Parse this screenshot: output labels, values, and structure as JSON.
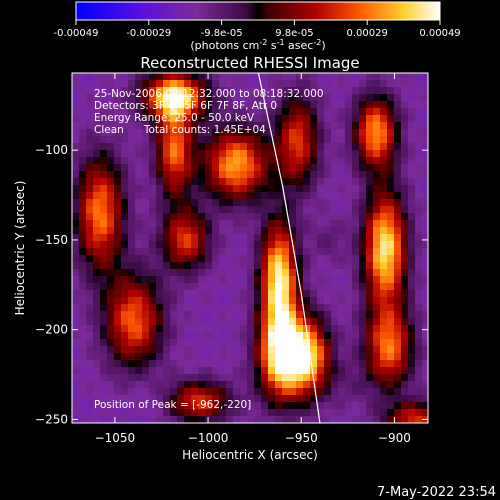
{
  "chart_data": {
    "type": "heatmap",
    "title": "Reconstructed RHESSI Image",
    "xlabel": "Heliocentric X (arcsec)",
    "ylabel": "Heliocentric Y (arcsec)",
    "xlim": [
      -1073,
      -882
    ],
    "ylim": [
      -252,
      -57
    ],
    "xticks": [
      -1050,
      -1000,
      -950,
      -900
    ],
    "yticks": [
      -100,
      -150,
      -200,
      -250
    ],
    "colorbar": {
      "ticks": [
        "-0.00049",
        "-0.00029",
        "-9.8e-05",
        "9.8e-05",
        "0.00029",
        "0.00049"
      ],
      "range": [
        -0.00049,
        0.00049
      ],
      "label_main": "(photons cm",
      "label_exp1": "-2",
      "label_mid": " s",
      "label_exp2": "-1",
      "label_end": " asec",
      "label_exp3": "-2",
      "label_close": ")"
    },
    "annotations": [
      "25-Nov-2006 08:12:32.000 to 08:18:32.000",
      "Detectors: 3F 4F 5F 6F 7F 8F, Att 0",
      "Energy Range: 25.0 - 50.0 keV",
      "Clean      Total counts: 1.45E+04"
    ],
    "peak_label": "Position of Peak = [-962,-220]",
    "peak": [
      -962,
      -220
    ],
    "limb": [
      [
        -973,
        -57
      ],
      [
        -960,
        -120
      ],
      [
        -950,
        -180
      ],
      [
        -940,
        -252
      ]
    ],
    "features": [
      {
        "x": -1058,
        "y": -135,
        "sx": 9,
        "sy": 22,
        "v": 0.0003
      },
      {
        "x": -1040,
        "y": -195,
        "sx": 11,
        "sy": 18,
        "v": 0.00027
      },
      {
        "x": -1018,
        "y": -100,
        "sx": 7,
        "sy": 18,
        "v": 0.00028
      },
      {
        "x": -1012,
        "y": -150,
        "sx": 9,
        "sy": 12,
        "v": 0.00022
      },
      {
        "x": -1018,
        "y": -70,
        "sx": 12,
        "sy": 9,
        "v": 0.00042
      },
      {
        "x": -985,
        "y": -108,
        "sx": 12,
        "sy": 14,
        "v": 0.00035
      },
      {
        "x": -1005,
        "y": -240,
        "sx": 12,
        "sy": 8,
        "v": 0.00022
      },
      {
        "x": -962,
        "y": -172,
        "sx": 7,
        "sy": 22,
        "v": 0.00046
      },
      {
        "x": -960,
        "y": -215,
        "sx": 9,
        "sy": 17,
        "v": 0.00049
      },
      {
        "x": -952,
        "y": -95,
        "sx": 8,
        "sy": 18,
        "v": 0.00022
      },
      {
        "x": -945,
        "y": -215,
        "sx": 8,
        "sy": 15,
        "v": 0.0003
      },
      {
        "x": -910,
        "y": -90,
        "sx": 8,
        "sy": 14,
        "v": 0.00033
      },
      {
        "x": -905,
        "y": -155,
        "sx": 8,
        "sy": 22,
        "v": 0.00044
      },
      {
        "x": -903,
        "y": -210,
        "sx": 9,
        "sy": 16,
        "v": 0.00028
      },
      {
        "x": -888,
        "y": -250,
        "sx": 12,
        "sy": 7,
        "v": 0.0002
      },
      {
        "x": -1030,
        "y": -240,
        "sx": 9,
        "sy": 8,
        "v": -0.00022
      },
      {
        "x": -1045,
        "y": -105,
        "sx": 9,
        "sy": 10,
        "v": -0.00018
      },
      {
        "x": -980,
        "y": -230,
        "sx": 10,
        "sy": 14,
        "v": -0.00018
      },
      {
        "x": -925,
        "y": -230,
        "sx": 9,
        "sy": 9,
        "v": -0.00012
      },
      {
        "x": -935,
        "y": -150,
        "sx": 7,
        "sy": 9,
        "v": -0.0001
      }
    ]
  },
  "footer": {
    "timestamp": "7-May-2022 23:54"
  }
}
